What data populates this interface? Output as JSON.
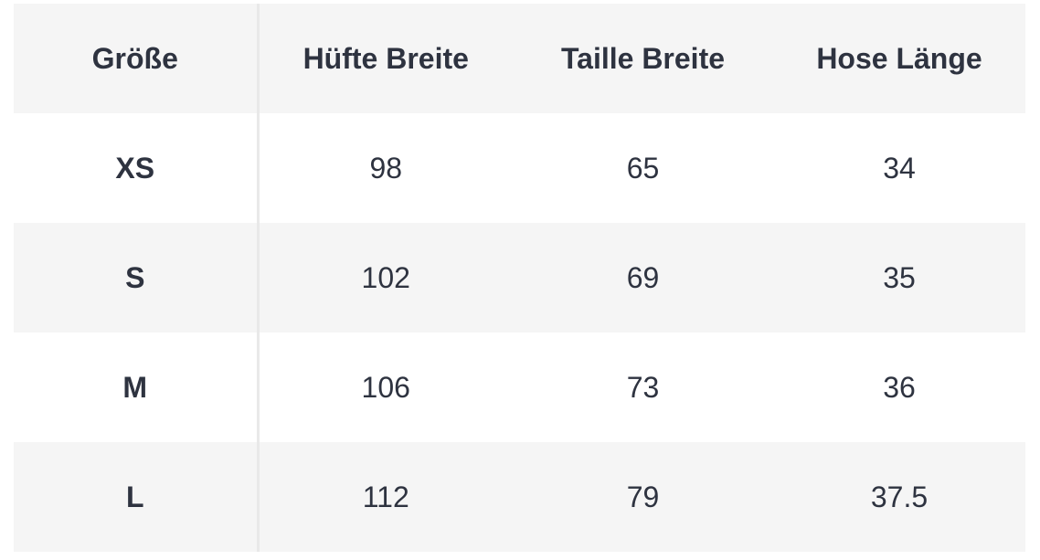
{
  "table": {
    "headers": [
      "Größe",
      "Hüfte Breite",
      "Taille Breite",
      "Hose Länge"
    ],
    "rows": [
      [
        "XS",
        "98",
        "65",
        "34"
      ],
      [
        "S",
        "102",
        "69",
        "35"
      ],
      [
        "M",
        "106",
        "73",
        "36"
      ],
      [
        "L",
        "112",
        "79",
        "37.5"
      ]
    ]
  },
  "colors": {
    "text": "#2e3340",
    "shaded_row": "#f5f5f5",
    "plain_row": "#ffffff",
    "divider": "#e9e9e9"
  }
}
